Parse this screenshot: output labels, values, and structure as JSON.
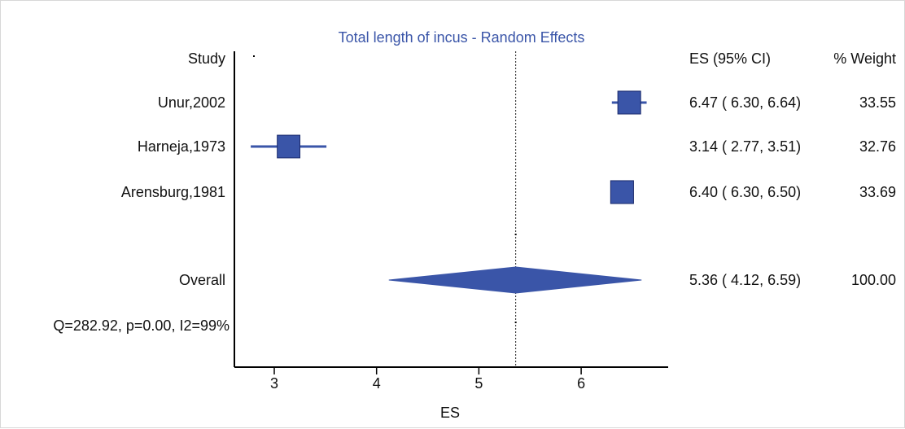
{
  "chart_data": {
    "type": "forest",
    "title": "Total length of incus - Random Effects",
    "xlabel": "ES",
    "xlim": [
      2.6,
      6.85
    ],
    "xticks": [
      "3",
      "4",
      "5",
      "6"
    ],
    "headers": {
      "study": "Study",
      "es": "ES (95% CI)",
      "weight": "% Weight"
    },
    "studies": [
      {
        "name": "Unur,2002",
        "es": 6.47,
        "lower": 6.3,
        "upper": 6.64,
        "weight": 33.55,
        "es_text": "6.47",
        "lower_text": "6.30",
        "upper_text": "6.64",
        "weight_text": "33.55"
      },
      {
        "name": "Harneja,1973",
        "es": 3.14,
        "lower": 2.77,
        "upper": 3.51,
        "weight": 32.76,
        "es_text": "3.14",
        "lower_text": "2.77",
        "upper_text": "3.51",
        "weight_text": "32.76"
      },
      {
        "name": "Arensburg,1981",
        "es": 6.4,
        "lower": 6.3,
        "upper": 6.5,
        "weight": 33.69,
        "es_text": "6.40",
        "lower_text": "6.30",
        "upper_text": "6.50",
        "weight_text": "33.69"
      }
    ],
    "overall": {
      "name": "Overall",
      "es": 5.36,
      "lower": 4.12,
      "upper": 6.59,
      "weight": 100.0,
      "es_text": "5.36",
      "lower_text": "4.12",
      "upper_text": "6.59",
      "weight_text": "100.00"
    },
    "heterogeneity": "Q=282.92, p=0.00, I2=99%",
    "colors": {
      "marker": "#3a55a8",
      "title": "#3a55a8",
      "text": "#111111",
      "axis": "#000000"
    }
  }
}
